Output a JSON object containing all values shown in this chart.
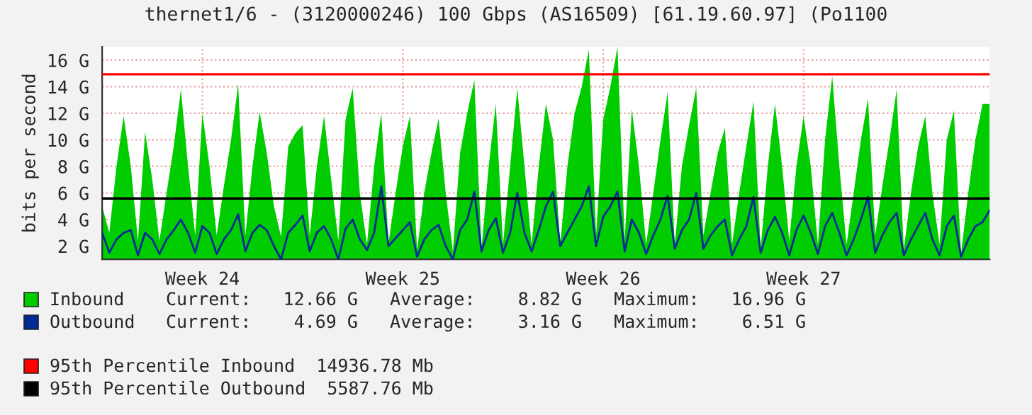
{
  "chart_data": {
    "type": "area",
    "title": "thernet1/6 - (3120000246) 100 Gbps (AS16509) [61.19.60.97] (Po1100",
    "ylabel": "bits per second",
    "categories": [
      null,
      null,
      null,
      null,
      null,
      null,
      null,
      null,
      null,
      null,
      null,
      null,
      null,
      null,
      "Week 24",
      null,
      null,
      null,
      null,
      null,
      null,
      null,
      null,
      null,
      null,
      null,
      null,
      null,
      null,
      null,
      null,
      null,
      null,
      null,
      null,
      null,
      null,
      null,
      null,
      null,
      null,
      null,
      "Week 25",
      null,
      null,
      null,
      null,
      null,
      null,
      null,
      null,
      null,
      null,
      null,
      null,
      null,
      null,
      null,
      null,
      null,
      null,
      null,
      null,
      null,
      null,
      null,
      null,
      null,
      null,
      null,
      "Week 26",
      null,
      null,
      null,
      null,
      null,
      null,
      null,
      null,
      null,
      null,
      null,
      null,
      null,
      null,
      null,
      null,
      null,
      null,
      null,
      null,
      null,
      null,
      null,
      null,
      null,
      null,
      null,
      "Week 27",
      null,
      null,
      null,
      null,
      null,
      null,
      null,
      null,
      null,
      null,
      null,
      null,
      null,
      null,
      null,
      null,
      null,
      null,
      null,
      null,
      null,
      null,
      null,
      null,
      null,
      null
    ],
    "series": [
      {
        "name": "Inbound",
        "color": "#00cc00",
        "values": [
          5.0,
          3.0,
          8.0,
          11.8,
          8.0,
          2.4,
          10.6,
          7.0,
          2.4,
          6.0,
          9.5,
          13.8,
          8.0,
          2.8,
          12.0,
          8.0,
          2.8,
          6.5,
          10.0,
          14.2,
          2.8,
          8.0,
          12.1,
          9.0,
          5.0,
          2.7,
          9.5,
          10.5,
          11.1,
          2.8,
          8.0,
          11.8,
          7.0,
          2.4,
          11.5,
          13.9,
          6.0,
          2.1,
          8.0,
          12.0,
          2.2,
          6.0,
          9.5,
          11.8,
          1.7,
          6.0,
          9.0,
          11.6,
          6.0,
          1.6,
          9.0,
          12.0,
          14.5,
          1.8,
          8.0,
          12.7,
          2.1,
          8.0,
          13.9,
          8.0,
          2.1,
          8.0,
          12.7,
          10.0,
          2.1,
          8.0,
          12.0,
          14.0,
          16.8,
          2.8,
          11.5,
          14.0,
          17.0,
          2.4,
          12.3,
          8.0,
          2.1,
          6.0,
          10.0,
          13.6,
          2.1,
          8.0,
          11.1,
          13.9,
          2.8,
          6.0,
          9.0,
          10.9,
          2.1,
          6.0,
          9.5,
          12.9,
          1.8,
          8.0,
          12.7,
          8.0,
          2.4,
          8.0,
          11.8,
          8.0,
          2.1,
          10.0,
          14.8,
          8.0,
          2.1,
          6.0,
          10.0,
          13.1,
          2.8,
          6.5,
          10.0,
          13.8,
          1.7,
          6.0,
          9.5,
          11.8,
          6.0,
          2.1,
          10.0,
          12.2,
          1.4,
          6.0,
          10.0,
          12.7,
          12.7
        ]
      },
      {
        "name": "Outbound",
        "type": "line",
        "color": "#002a97",
        "values": [
          3.0,
          1.5,
          2.5,
          3.0,
          3.2,
          1.3,
          3.0,
          2.5,
          1.4,
          2.5,
          3.2,
          4.0,
          3.0,
          1.5,
          3.5,
          3.0,
          1.4,
          2.5,
          3.2,
          4.4,
          1.6,
          3.0,
          3.6,
          3.2,
          2.0,
          1.0,
          3.0,
          3.6,
          4.3,
          1.6,
          3.0,
          3.5,
          2.5,
          1.0,
          3.3,
          4.0,
          2.5,
          1.7,
          3.0,
          6.5,
          2.0,
          2.6,
          3.2,
          3.8,
          1.2,
          2.5,
          3.2,
          3.6,
          2.0,
          1.0,
          3.2,
          4.0,
          6.1,
          1.6,
          3.2,
          4.1,
          1.5,
          3.0,
          6.0,
          3.0,
          1.6,
          3.2,
          5.0,
          6.1,
          2.0,
          3.0,
          4.0,
          5.0,
          6.5,
          2.0,
          4.2,
          5.0,
          6.1,
          1.6,
          4.0,
          3.0,
          1.4,
          2.8,
          4.0,
          5.8,
          1.8,
          3.2,
          4.0,
          6.0,
          1.8,
          2.8,
          3.5,
          4.0,
          1.3,
          2.5,
          3.5,
          5.7,
          1.5,
          3.2,
          4.2,
          3.0,
          1.3,
          3.2,
          4.3,
          3.0,
          1.4,
          3.5,
          4.5,
          3.0,
          1.3,
          2.5,
          4.0,
          5.7,
          1.5,
          2.8,
          3.8,
          4.5,
          1.3,
          2.5,
          3.5,
          4.5,
          2.5,
          1.3,
          3.5,
          4.3,
          1.2,
          2.5,
          3.5,
          3.8,
          4.7
        ]
      }
    ],
    "ylim": [
      1,
      17
    ],
    "yticks": [
      {
        "value": 2,
        "label": "2 G"
      },
      {
        "value": 4,
        "label": "4 G"
      },
      {
        "value": 6,
        "label": "6 G"
      },
      {
        "value": 8,
        "label": "8 G"
      },
      {
        "value": 10,
        "label": "10 G"
      },
      {
        "value": 12,
        "label": "12 G"
      },
      {
        "value": 14,
        "label": "14 G"
      },
      {
        "value": 16,
        "label": "16 G"
      }
    ],
    "ref_lines": [
      {
        "axis": "y",
        "value": 14.93678,
        "label": "95th Percentile Inbound  14936.78 Mb",
        "color": "#ff0000"
      },
      {
        "axis": "y",
        "value": 5.58776,
        "label": "95th Percentile Outbound  5587.76 Mb",
        "color": "#000000"
      }
    ],
    "annotations": [
      "Current:   12.66 G   Average:    8.82 G   Maximum:   16.96 G",
      "Current:    4.69 G   Average:    3.16 G   Maximum:    6.51 G"
    ],
    "grid": true,
    "legend": "bottom"
  }
}
